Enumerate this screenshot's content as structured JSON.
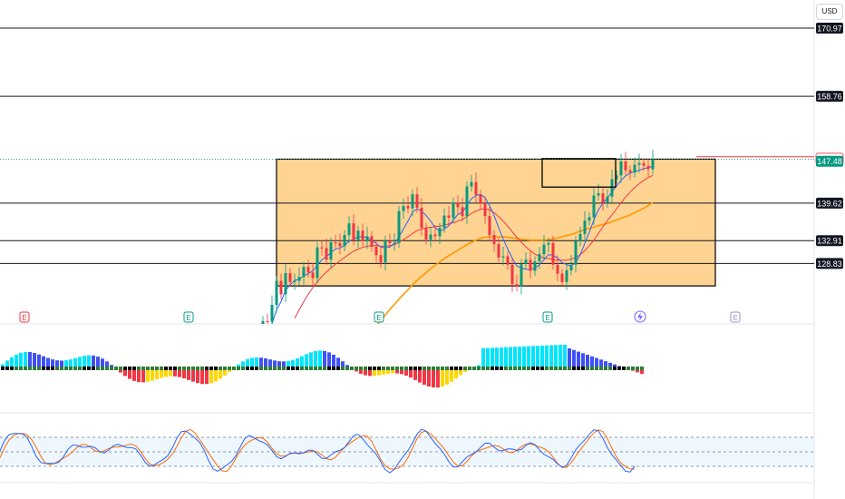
{
  "currency": "USD",
  "colors": {
    "up": "#089981",
    "down": "#f23645",
    "ma_fast": "#2962ff",
    "ma_mid": "#f23645",
    "ma_slow": "#ff9800",
    "zone_fill": "#ffcc80",
    "rsi_band": "#e3f2fd"
  },
  "chart_data": {
    "type": "candlestick",
    "y_range": [
      118,
      176
    ],
    "levels": [
      {
        "label": "170.97",
        "value": 170.97
      },
      {
        "label": "158.76",
        "value": 158.76
      },
      {
        "label": "139.62",
        "value": 139.62
      },
      {
        "label": "132.91",
        "value": 132.91
      },
      {
        "label": "128.83",
        "value": 128.83
      }
    ],
    "price_tags": [
      {
        "label": "147.93",
        "value": 147.93,
        "color": "#f23645"
      },
      {
        "label": "147.48",
        "value": 147.48,
        "color": "#089981"
      }
    ],
    "zone": {
      "bar_start": 0,
      "bar_end": 88,
      "high": 147.5,
      "low": 124.8
    },
    "consolidation_box": {
      "bar_start": 68,
      "bar_end": 79,
      "high": 147.6,
      "low": 142.5
    },
    "close": [
      108.8,
      108.7,
      111.2,
      110.1,
      113.8,
      116.1,
      118.5,
      118.4,
      121.4,
      125.7,
      123.3,
      127.1,
      125.5,
      125.7,
      126.4,
      128.2,
      127.2,
      126.2,
      131.7,
      131.6,
      129.5,
      132.6,
      132.5,
      131.9,
      133.9,
      136.0,
      133.0,
      134.7,
      132.8,
      133.7,
      131.8,
      130.3,
      129.0,
      132.9,
      132.5,
      132.5,
      138.2,
      139.1,
      138.7,
      141.2,
      138.8,
      135.2,
      133.1,
      134.0,
      133.7,
      135.2,
      137.4,
      137.0,
      139.7,
      138.9,
      137.3,
      142.6,
      143.4,
      141.1,
      139.5,
      137.3,
      133.9,
      132.3,
      129.9,
      130.1,
      128.6,
      125.1,
      124.7,
      128.7,
      129.5,
      127.5,
      129.2,
      130.5,
      132.2,
      132.5,
      128.6,
      127.0,
      125.5,
      127.6,
      128.6,
      132.8,
      134.1,
      136.5,
      137.1,
      141.0,
      141.4,
      139.7,
      140.8,
      143.9,
      144.6,
      147.1,
      145.5,
      145.1,
      146.5,
      146.8,
      146.3,
      145.7,
      147.48
    ],
    "ma_fast": [
      null,
      null,
      null,
      null,
      110.5,
      112.0,
      114.0,
      116.0,
      118.0,
      120.5,
      122.0,
      124.0,
      125.0,
      125.8,
      126.0,
      126.6,
      127.0,
      127.5,
      128.5,
      129.5,
      130.0,
      130.8,
      131.4,
      131.6,
      132.0,
      132.8,
      133.2,
      133.6,
      133.6,
      133.5,
      133.0,
      132.4,
      131.8,
      131.6,
      131.8,
      132.4,
      133.6,
      135.0,
      136.4,
      138.0,
      138.6,
      138.2,
      137.4,
      136.4,
      135.2,
      134.6,
      135.0,
      135.6,
      136.6,
      137.6,
      138.0,
      139.2,
      140.4,
      141.0,
      141.2,
      140.6,
      139.2,
      137.4,
      135.2,
      133.2,
      131.4,
      129.8,
      128.4,
      128.0,
      127.8,
      127.7,
      128.0,
      128.6,
      129.5,
      130.4,
      130.3,
      129.8,
      129.0,
      128.6,
      128.4,
      129.0,
      130.4,
      132.4,
      134.4,
      136.6,
      138.4,
      139.6,
      140.6,
      141.6,
      142.7,
      143.7,
      144.5,
      145.0,
      145.3,
      145.5,
      145.8,
      146.0,
      146.2
    ],
    "ma_mid": [
      null,
      null,
      null,
      null,
      null,
      null,
      null,
      null,
      null,
      null,
      null,
      null,
      null,
      119.0,
      120.5,
      122.0,
      123.3,
      124.5,
      125.5,
      126.5,
      127.3,
      128.0,
      128.7,
      129.3,
      129.9,
      130.5,
      131.0,
      131.4,
      131.7,
      131.9,
      132.0,
      132.0,
      131.9,
      131.9,
      132.0,
      132.2,
      132.6,
      133.1,
      133.6,
      134.2,
      134.7,
      135.0,
      135.2,
      135.3,
      135.4,
      135.5,
      135.7,
      135.9,
      136.1,
      136.4,
      136.7,
      137.2,
      137.8,
      138.2,
      138.5,
      138.6,
      138.4,
      137.9,
      137.2,
      136.4,
      135.5,
      134.5,
      133.5,
      132.6,
      131.8,
      131.1,
      130.5,
      130.1,
      129.8,
      129.7,
      129.5,
      129.4,
      129.4,
      129.4,
      129.6,
      129.9,
      130.4,
      131.1,
      132.0,
      133.0,
      134.2,
      135.4,
      136.5,
      137.5,
      138.6,
      139.7,
      140.7,
      141.6,
      142.4,
      143.1,
      143.7,
      144.2,
      144.6
    ],
    "ma_slow": [
      null,
      null,
      null,
      null,
      null,
      null,
      null,
      null,
      null,
      null,
      null,
      null,
      null,
      null,
      null,
      null,
      null,
      null,
      null,
      null,
      null,
      null,
      null,
      null,
      null,
      null,
      null,
      113.0,
      114.2,
      115.4,
      116.5,
      117.6,
      118.6,
      119.6,
      120.6,
      121.5,
      122.4,
      123.3,
      124.1,
      125.0,
      125.8,
      126.5,
      127.2,
      127.9,
      128.5,
      129.1,
      129.7,
      130.2,
      130.7,
      131.2,
      131.7,
      132.2,
      132.6,
      133.0,
      133.3,
      133.5,
      133.6,
      133.6,
      133.6,
      133.6,
      133.5,
      133.4,
      133.3,
      133.2,
      133.1,
      133.0,
      133.0,
      133.0,
      133.0,
      133.1,
      133.2,
      133.4,
      133.6,
      133.8,
      134.0,
      134.3,
      134.6,
      134.9,
      135.1,
      135.3,
      135.6,
      135.8,
      136.0,
      136.3,
      136.6,
      136.9,
      137.2,
      137.5,
      137.9,
      138.3,
      138.7,
      139.2,
      139.7
    ]
  }
}
